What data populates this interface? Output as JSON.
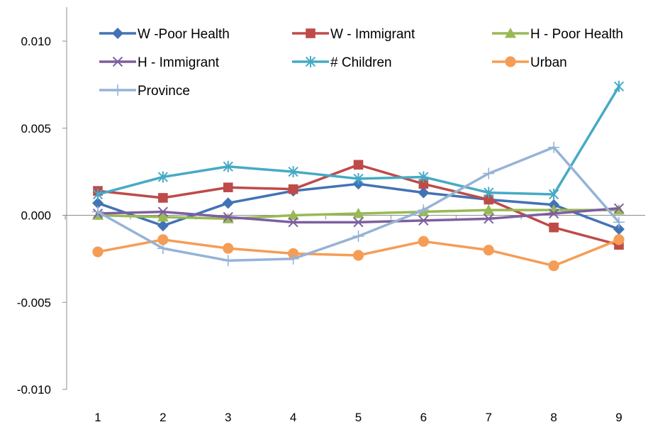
{
  "chart_data": {
    "type": "line",
    "title": "",
    "xlabel": "",
    "ylabel": "",
    "categories": [
      "1",
      "2",
      "3",
      "4",
      "5",
      "6",
      "7",
      "8",
      "9"
    ],
    "ylim": [
      -0.01,
      0.01
    ],
    "yticks": [
      0.01,
      0.005,
      0.0,
      -0.005,
      -0.01
    ],
    "ytick_labels": [
      "0.010",
      "0.005",
      "0.000",
      "-0.005",
      "-0.010"
    ],
    "grid": false,
    "legend_position": "top",
    "series": [
      {
        "name": "W -Poor Health",
        "color": "#4372B5",
        "marker": "diamond",
        "values": [
          0.0007,
          -0.0006,
          0.0007,
          0.0014,
          0.0018,
          0.0013,
          0.0009,
          0.0006,
          -0.0008
        ]
      },
      {
        "name": "W - Immigrant",
        "color": "#BE4B48",
        "marker": "square",
        "values": [
          0.0014,
          0.001,
          0.0016,
          0.0015,
          0.0029,
          0.0018,
          0.0009,
          -0.0007,
          -0.0017
        ]
      },
      {
        "name": "H - Poor Health",
        "color": "#98B954",
        "marker": "triangle",
        "values": [
          0.0,
          -0.0001,
          -0.0002,
          0.0,
          0.0001,
          0.0002,
          0.0003,
          0.0003,
          0.0003
        ]
      },
      {
        "name": "H - Immigrant",
        "color": "#7D5FA0",
        "marker": "x",
        "values": [
          0.0001,
          0.0002,
          -0.0001,
          -0.0004,
          -0.0004,
          -0.0003,
          -0.0002,
          0.0001,
          0.0004
        ]
      },
      {
        "name": "# Children",
        "color": "#46AAC5",
        "marker": "asterisk",
        "values": [
          0.0012,
          0.0022,
          0.0028,
          0.0025,
          0.0021,
          0.0022,
          0.0013,
          0.0012,
          0.0074
        ]
      },
      {
        "name": "Urban",
        "color": "#F59D56",
        "marker": "circle",
        "values": [
          -0.0021,
          -0.0014,
          -0.0019,
          -0.0022,
          -0.0023,
          -0.0015,
          -0.002,
          -0.0029,
          -0.0014
        ]
      },
      {
        "name": "Province",
        "color": "#95B3D7",
        "marker": "plus",
        "values": [
          0.0002,
          -0.0019,
          -0.0026,
          -0.0025,
          -0.0012,
          0.0003,
          0.0024,
          0.0039,
          -0.0004
        ]
      }
    ]
  }
}
